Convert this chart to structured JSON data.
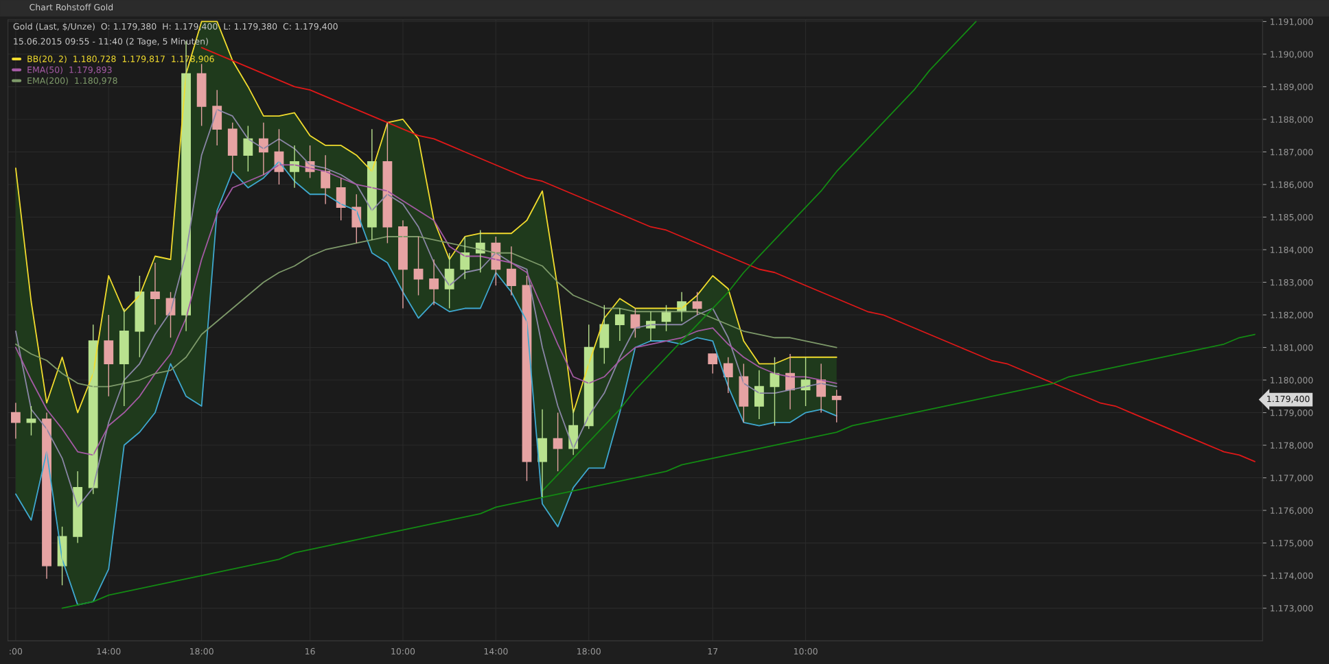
{
  "chart_data": {
    "type": "candlestick",
    "title": "Chart Rohstoff Gold",
    "subtitle": "Gold (Last, $/Unze)  O: 1.179,380  H: 1.179,400  L: 1.179,380  C: 1.179,400",
    "annotations": [
      "15.06.2015 09:55 - 11:40 (2 Tage, 5 Minuten)",
      "1.179,400"
    ],
    "categories": [
      ":00",
      null,
      null,
      null,
      null,
      null,
      "14:00",
      null,
      null,
      null,
      null,
      null,
      "18:00",
      null,
      null,
      null,
      null,
      null,
      null,
      "16",
      null,
      null,
      null,
      null,
      null,
      "10:00",
      null,
      null,
      null,
      null,
      null,
      "14:00",
      null,
      null,
      null,
      null,
      null,
      "18:00",
      null,
      null,
      null,
      null,
      null,
      null,
      null,
      "17",
      null,
      null,
      null,
      null,
      null,
      "10:00",
      null,
      null,
      null,
      null,
      null,
      null,
      null,
      null,
      null,
      null,
      null,
      null,
      null,
      null,
      null,
      null,
      null,
      null,
      null,
      null,
      null,
      null,
      null,
      null,
      null,
      null,
      null,
      null,
      null
    ],
    "ohlc": [
      [
        1179.0,
        1179.3,
        1178.2,
        1178.7
      ],
      [
        1178.7,
        1179.2,
        1178.3,
        1178.8
      ],
      [
        1178.8,
        1179.0,
        1173.9,
        1174.3
      ],
      [
        1174.3,
        1175.5,
        1173.7,
        1175.2
      ],
      [
        1175.2,
        1177.2,
        1175.0,
        1176.7
      ],
      [
        1176.7,
        1181.7,
        1176.5,
        1181.2
      ],
      [
        1181.2,
        1182.0,
        1179.5,
        1180.5
      ],
      [
        1180.5,
        1182.2,
        1179.2,
        1181.5
      ],
      [
        1181.5,
        1183.2,
        1180.7,
        1182.7
      ],
      [
        1182.7,
        1183.6,
        1181.7,
        1182.5
      ],
      [
        1182.5,
        1182.7,
        1181.3,
        1182.0
      ],
      [
        1182.0,
        1190.4,
        1181.5,
        1189.4
      ],
      [
        1189.4,
        1189.7,
        1187.8,
        1188.4
      ],
      [
        1188.4,
        1188.9,
        1187.2,
        1187.7
      ],
      [
        1187.7,
        1187.9,
        1186.4,
        1186.9
      ],
      [
        1186.9,
        1187.8,
        1186.4,
        1187.4
      ],
      [
        1187.4,
        1187.9,
        1186.3,
        1187.0
      ],
      [
        1187.0,
        1187.7,
        1186.0,
        1186.4
      ],
      [
        1186.4,
        1187.2,
        1185.9,
        1186.7
      ],
      [
        1186.7,
        1187.2,
        1186.2,
        1186.4
      ],
      [
        1186.4,
        1186.9,
        1185.4,
        1185.9
      ],
      [
        1185.9,
        1186.2,
        1184.9,
        1185.3
      ],
      [
        1185.3,
        1185.7,
        1184.2,
        1184.7
      ],
      [
        1184.7,
        1187.7,
        1184.3,
        1186.7
      ],
      [
        1186.7,
        1187.9,
        1184.2,
        1184.7
      ],
      [
        1184.7,
        1184.9,
        1182.2,
        1183.4
      ],
      [
        1183.4,
        1184.4,
        1182.6,
        1183.1
      ],
      [
        1183.1,
        1183.7,
        1182.3,
        1182.8
      ],
      [
        1182.8,
        1183.9,
        1182.2,
        1183.4
      ],
      [
        1183.4,
        1184.4,
        1183.1,
        1183.9
      ],
      [
        1183.9,
        1184.6,
        1183.3,
        1184.2
      ],
      [
        1184.2,
        1184.4,
        1182.9,
        1183.4
      ],
      [
        1183.4,
        1184.1,
        1182.6,
        1182.9
      ],
      [
        1182.9,
        1183.2,
        1176.9,
        1177.5
      ],
      [
        1177.5,
        1179.1,
        1176.4,
        1178.2
      ],
      [
        1178.2,
        1179.0,
        1177.2,
        1177.9
      ],
      [
        1177.9,
        1179.1,
        1177.7,
        1178.6
      ],
      [
        1178.6,
        1181.7,
        1178.5,
        1181.0
      ],
      [
        1181.0,
        1182.3,
        1180.5,
        1181.7
      ],
      [
        1181.7,
        1182.2,
        1181.2,
        1182.0
      ],
      [
        1182.0,
        1182.2,
        1181.3,
        1181.6
      ],
      [
        1181.6,
        1182.1,
        1181.2,
        1181.8
      ],
      [
        1181.8,
        1182.3,
        1181.5,
        1182.1
      ],
      [
        1182.1,
        1182.7,
        1181.8,
        1182.4
      ],
      [
        1182.4,
        1182.7,
        1182.0,
        1182.2
      ],
      [
        1180.8,
        1180.8,
        1180.2,
        1180.5
      ],
      [
        1180.5,
        1180.7,
        1179.6,
        1180.1
      ],
      [
        1180.1,
        1180.5,
        1178.7,
        1179.2
      ],
      [
        1179.2,
        1180.3,
        1178.8,
        1179.8
      ],
      [
        1179.8,
        1180.7,
        1178.6,
        1180.2
      ],
      [
        1180.2,
        1180.8,
        1179.1,
        1179.7
      ],
      [
        1179.7,
        1180.7,
        1179.2,
        1180.0
      ],
      [
        1180.0,
        1180.5,
        1179.0,
        1179.5
      ],
      [
        1179.5,
        1179.7,
        1178.7,
        1179.4
      ],
      null,
      null,
      null,
      null,
      null,
      null,
      null,
      null,
      null,
      null,
      null,
      null,
      null,
      null,
      null,
      null,
      null,
      null,
      null,
      null,
      null,
      null,
      null,
      null,
      null,
      null,
      null
    ],
    "series": [
      {
        "type": "line",
        "name": "BB(20, 2)  1.180,728  1.179,817  1.178,906",
        "color": "#f2dc2e",
        "values": [
          1186.5,
          1182.4,
          1179.3,
          1180.7,
          1179.0,
          1180.2,
          1183.2,
          1182.1,
          1182.6,
          1183.8,
          1183.7,
          1189.4,
          1191.0,
          1191.0,
          1189.8,
          1189.0,
          1188.1,
          1188.1,
          1188.2,
          1187.5,
          1187.2,
          1187.2,
          1186.9,
          1186.4,
          1187.9,
          1188.0,
          1187.4,
          1184.9,
          1183.7,
          1184.4,
          1184.5,
          1184.5,
          1184.5,
          1184.9,
          1185.8,
          1182.8,
          1179.0,
          1180.5,
          1181.9,
          1182.5,
          1182.2,
          1182.2,
          1182.2,
          1182.2,
          1182.6,
          1183.2,
          1182.8,
          1181.2,
          1180.5,
          1180.5,
          1180.7,
          1180.7,
          1180.7,
          1180.7,
          null,
          null,
          null,
          null,
          null,
          null,
          null,
          null,
          null,
          null,
          null,
          null,
          null,
          null,
          null,
          null,
          null,
          null,
          null,
          null,
          null,
          null,
          null,
          null,
          null,
          null,
          null
        ]
      },
      {
        "type": "line",
        "color": "#8a86a6",
        "values": [
          1181.5,
          1179.1,
          1178.5,
          1177.6,
          1176.1,
          1176.7,
          1178.7,
          1180.0,
          1180.5,
          1181.4,
          1182.1,
          1183.9,
          1186.9,
          1188.3,
          1188.1,
          1187.4,
          1187.1,
          1187.4,
          1187.1,
          1186.6,
          1186.5,
          1186.3,
          1186.0,
          1185.2,
          1185.7,
          1185.4,
          1184.7,
          1183.6,
          1182.9,
          1183.3,
          1183.4,
          1183.9,
          1183.6,
          1183.4,
          1181.0,
          1179.2,
          1177.9,
          1178.9,
          1179.6,
          1180.7,
          1181.6,
          1181.7,
          1181.7,
          1181.7,
          1182.0,
          1182.2,
          1181.3,
          1179.9,
          1179.6,
          1179.6,
          1179.7,
          1179.8,
          1179.9,
          1179.8,
          null,
          null,
          null,
          null,
          null,
          null,
          null,
          null,
          null,
          null,
          null,
          null,
          null,
          null,
          null,
          null,
          null,
          null,
          null,
          null,
          null,
          null,
          null,
          null,
          null,
          null,
          null
        ],
        "upper": [
          1186.5,
          1182.4,
          1179.3,
          1180.7,
          1179.0,
          1180.2,
          1183.2,
          1182.1,
          1182.6,
          1183.8,
          1183.7,
          1189.4,
          1191.0,
          1191.0,
          1189.8,
          1189.0,
          1188.1,
          1188.1,
          1188.2,
          1187.5,
          1187.2,
          1187.2,
          1186.9,
          1186.4,
          1187.9,
          1188.0,
          1187.4,
          1184.9,
          1183.7,
          1184.4,
          1184.5,
          1184.5,
          1184.5,
          1184.9,
          1185.8,
          1182.8,
          1179.0,
          1180.5,
          1181.9,
          1182.5,
          1182.2,
          1182.2,
          1182.2,
          1182.2,
          1182.6,
          1183.2,
          1182.8,
          1181.2,
          1180.5,
          1180.5,
          1180.7,
          1180.7,
          1180.7,
          1180.7,
          null,
          null,
          null,
          null,
          null,
          null,
          null,
          null,
          null,
          null,
          null,
          null,
          null,
          null,
          null,
          null,
          null,
          null,
          null,
          null,
          null,
          null,
          null,
          null,
          null,
          null,
          null
        ],
        "lower": [
          1176.5,
          1175.7,
          1177.8,
          1174.5,
          1173.1,
          1173.2,
          1174.2,
          1178.0,
          1178.4,
          1179.0,
          1180.5,
          1179.5,
          1179.2,
          1185.2,
          1186.4,
          1185.9,
          1186.2,
          1186.7,
          1186.1,
          1185.7,
          1185.7,
          1185.4,
          1185.2,
          1183.9,
          1183.6,
          1182.7,
          1181.9,
          1182.4,
          1182.1,
          1182.2,
          1182.2,
          1183.3,
          1182.7,
          1181.8,
          1176.2,
          1175.5,
          1176.7,
          1177.3,
          1177.3,
          1179.0,
          1181.0,
          1181.2,
          1181.2,
          1181.1,
          1181.3,
          1181.2,
          1179.8,
          1178.7,
          1178.6,
          1178.7,
          1178.7,
          1179.0,
          1179.1,
          1178.9,
          null,
          null,
          null,
          null,
          null,
          null,
          null,
          null,
          null,
          null,
          null,
          null,
          null,
          null,
          null,
          null,
          null,
          null,
          null,
          null,
          null,
          null,
          null,
          null,
          null,
          null,
          null
        ]
      },
      {
        "type": "line",
        "color": "#3fa8d0",
        "values": [
          1176.5,
          1175.7,
          1177.8,
          1174.5,
          1173.1,
          1173.2,
          1174.2,
          1178.0,
          1178.4,
          1179.0,
          1180.5,
          1179.5,
          1179.2,
          1185.2,
          1186.4,
          1185.9,
          1186.2,
          1186.7,
          1186.1,
          1185.7,
          1185.7,
          1185.4,
          1185.2,
          1183.9,
          1183.6,
          1182.7,
          1181.9,
          1182.4,
          1182.1,
          1182.2,
          1182.2,
          1183.3,
          1182.7,
          1181.8,
          1176.2,
          1175.5,
          1176.7,
          1177.3,
          1177.3,
          1179.0,
          1181.0,
          1181.2,
          1181.2,
          1181.1,
          1181.3,
          1181.2,
          1179.8,
          1178.7,
          1178.6,
          1178.7,
          1178.7,
          1179.0,
          1179.1,
          1178.9,
          null,
          null,
          null,
          null,
          null,
          null,
          null,
          null,
          null,
          null,
          null,
          null,
          null,
          null,
          null,
          null,
          null,
          null,
          null,
          null,
          null,
          null,
          null,
          null,
          null,
          null,
          null
        ]
      },
      {
        "type": "line",
        "name": "EMA(50)  1.179,893",
        "color": "#a45aa4",
        "values": [
          1181.0,
          1180.0,
          1179.1,
          1178.5,
          1177.8,
          1177.7,
          1178.6,
          1179.0,
          1179.5,
          1180.2,
          1180.8,
          1181.9,
          1183.7,
          1185.1,
          1185.9,
          1186.1,
          1186.3,
          1186.6,
          1186.6,
          1186.5,
          1186.4,
          1186.2,
          1186.0,
          1185.9,
          1185.8,
          1185.5,
          1185.2,
          1184.9,
          1184.1,
          1183.8,
          1183.8,
          1183.7,
          1183.6,
          1183.3,
          1182.2,
          1181.1,
          1180.1,
          1179.9,
          1180.1,
          1180.6,
          1181.0,
          1181.1,
          1181.2,
          1181.3,
          1181.5,
          1181.6,
          1181.1,
          1180.7,
          1180.4,
          1180.2,
          1180.1,
          1180.1,
          1180.0,
          1179.9,
          null,
          null,
          null,
          null,
          null,
          null,
          null,
          null,
          null,
          null,
          null,
          null,
          null,
          null,
          null,
          null,
          null,
          null,
          null,
          null,
          null,
          null,
          null,
          null,
          null,
          null,
          null
        ]
      },
      {
        "type": "line",
        "name": "EMA(200)  1.180,978",
        "color": "#7e9a6a",
        "values": [
          1181.1,
          1180.8,
          1180.6,
          1180.2,
          1179.9,
          1179.8,
          1179.8,
          1179.9,
          1180.0,
          1180.2,
          1180.3,
          1180.7,
          1181.4,
          1181.8,
          1182.2,
          1182.6,
          1183.0,
          1183.3,
          1183.5,
          1183.8,
          1184.0,
          1184.1,
          1184.2,
          1184.3,
          1184.4,
          1184.4,
          1184.4,
          1184.3,
          1184.2,
          1184.1,
          1184.0,
          1183.9,
          1183.9,
          1183.7,
          1183.5,
          1183.0,
          1182.6,
          1182.4,
          1182.2,
          1182.2,
          1182.1,
          1182.1,
          1182.1,
          1182.1,
          1182.1,
          1181.9,
          1181.7,
          1181.5,
          1181.4,
          1181.3,
          1181.3,
          1181.2,
          1181.1,
          1181.0,
          null,
          null,
          null,
          null,
          null,
          null,
          null,
          null,
          null,
          null,
          null,
          null,
          null,
          null,
          null,
          null,
          null,
          null,
          null,
          null,
          null,
          null,
          null,
          null,
          null,
          null,
          null
        ]
      },
      {
        "type": "line",
        "color": "#e01818",
        "values": [
          null,
          null,
          null,
          null,
          null,
          null,
          null,
          null,
          null,
          null,
          null,
          null,
          1190.2,
          1190.0,
          1189.8,
          1189.6,
          1189.4,
          1189.2,
          1189.0,
          1188.9,
          1188.7,
          1188.5,
          1188.3,
          1188.1,
          1187.9,
          1187.7,
          1187.5,
          1187.4,
          1187.2,
          1187.0,
          1186.8,
          1186.6,
          1186.4,
          1186.2,
          1186.1,
          1185.9,
          1185.7,
          1185.5,
          1185.3,
          1185.1,
          1184.9,
          1184.7,
          1184.6,
          1184.4,
          1184.2,
          1184.0,
          1183.8,
          1183.6,
          1183.4,
          1183.3,
          1183.1,
          1182.9,
          1182.7,
          1182.5,
          1182.3,
          1182.1,
          1182.0,
          1181.8,
          1181.6,
          1181.4,
          1181.2,
          1181.0,
          1180.8,
          1180.6,
          1180.5,
          1180.3,
          1180.1,
          1179.9,
          1179.7,
          1179.5,
          1179.3,
          1179.2,
          1179.0,
          1178.8,
          1178.6,
          1178.4,
          1178.2,
          1178.0,
          1177.8,
          1177.7,
          1177.5
        ]
      },
      {
        "type": "line",
        "color": "#138a13",
        "values": [
          null,
          null,
          null,
          1173.0,
          1173.1,
          1173.2,
          1173.4,
          1173.5,
          1173.6,
          1173.7,
          1173.8,
          1173.9,
          1174.0,
          1174.1,
          1174.2,
          1174.3,
          1174.4,
          1174.5,
          1174.7,
          1174.8,
          1174.9,
          1175.0,
          1175.1,
          1175.2,
          1175.3,
          1175.4,
          1175.5,
          1175.6,
          1175.7,
          1175.8,
          1175.9,
          1176.1,
          1176.2,
          1176.3,
          1176.4,
          1176.5,
          1176.6,
          1176.7,
          1176.8,
          1176.9,
          1177.0,
          1177.1,
          1177.2,
          1177.4,
          1177.5,
          1177.6,
          1177.7,
          1177.8,
          1177.9,
          1178.0,
          1178.1,
          1178.2,
          1178.3,
          1178.4,
          1178.6,
          1178.7,
          1178.8,
          1178.9,
          1179.0,
          1179.1,
          1179.2,
          1179.3,
          1179.4,
          1179.5,
          1179.6,
          1179.7,
          1179.8,
          1179.9,
          1180.1,
          1180.2,
          1180.3,
          1180.4,
          1180.5,
          1180.6,
          1180.7,
          1180.8,
          1180.9,
          1181.0,
          1181.1,
          1181.3,
          1181.4
        ]
      },
      {
        "type": "line",
        "color": "#138a13",
        "values": [
          null,
          null,
          null,
          null,
          null,
          null,
          null,
          null,
          null,
          null,
          null,
          null,
          null,
          null,
          null,
          null,
          null,
          null,
          null,
          null,
          null,
          null,
          null,
          null,
          null,
          null,
          null,
          null,
          null,
          null,
          null,
          null,
          null,
          null,
          1176.6,
          1177.1,
          1177.6,
          1178.1,
          1178.6,
          1179.1,
          1179.7,
          1180.2,
          1180.7,
          1181.2,
          1181.7,
          1182.2,
          1182.7,
          1183.3,
          1183.8,
          1184.3,
          1184.8,
          1185.3,
          1185.8,
          1186.4,
          1186.9,
          1187.4,
          1187.9,
          1188.4,
          1188.9,
          1189.5,
          1190.0,
          1190.5,
          1191.0,
          null,
          null,
          null,
          null,
          null,
          null,
          null,
          null,
          null,
          null,
          null,
          null,
          null,
          null,
          null,
          null,
          null,
          null
        ]
      }
    ],
    "ylim": [
      1172.0,
      1191.05
    ],
    "yticks": [
      {
        "value": 1173,
        "label": "1.173,000"
      },
      {
        "value": 1174,
        "label": "1.174,000"
      },
      {
        "value": 1175,
        "label": "1.175,000"
      },
      {
        "value": 1176,
        "label": "1.176,000"
      },
      {
        "value": 1177,
        "label": "1.177,000"
      },
      {
        "value": 1178,
        "label": "1.178,000"
      },
      {
        "value": 1179,
        "label": "1.179,000"
      },
      {
        "value": 1180,
        "label": "1.180,000"
      },
      {
        "value": 1181,
        "label": "1.181,000"
      },
      {
        "value": 1182,
        "label": "1.182,000"
      },
      {
        "value": 1183,
        "label": "1.183,000"
      },
      {
        "value": 1184,
        "label": "1.184,000"
      },
      {
        "value": 1185,
        "label": "1.185,000"
      },
      {
        "value": 1186,
        "label": "1.186,000"
      },
      {
        "value": 1187,
        "label": "1.187,000"
      },
      {
        "value": 1188,
        "label": "1.188,000"
      },
      {
        "value": 1189,
        "label": "1.189,000"
      },
      {
        "value": 1190,
        "label": "1.190,000"
      },
      {
        "value": 1191,
        "label": "1.191,000"
      }
    ],
    "grid": true,
    "legend": "top left"
  }
}
